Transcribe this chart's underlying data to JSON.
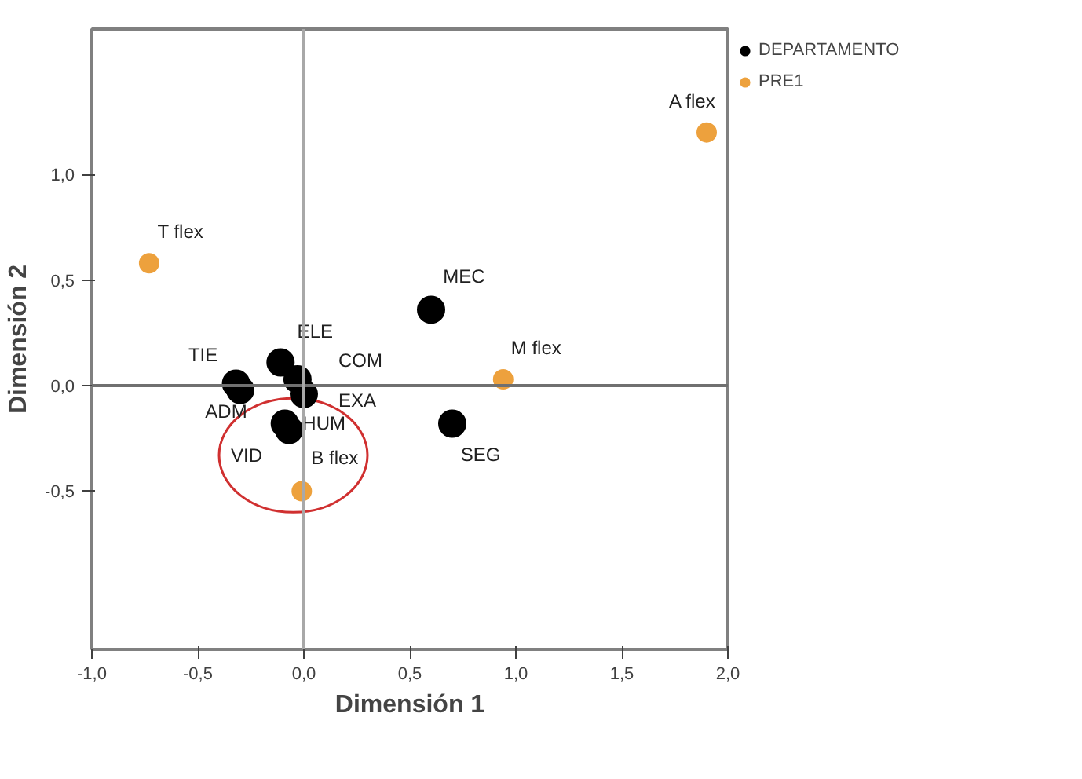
{
  "chart_data": {
    "type": "scatter",
    "xlabel": "Dimensión 1",
    "ylabel": "Dimensión 2",
    "xlim": [
      -1.0,
      2.0
    ],
    "ylim": [
      -1.25,
      1.69
    ],
    "xticks": [
      {
        "value": -1.0,
        "label": "-1,0"
      },
      {
        "value": -0.5,
        "label": "-0,5"
      },
      {
        "value": 0.0,
        "label": "0,0"
      },
      {
        "value": 0.5,
        "label": "0,5"
      },
      {
        "value": 1.0,
        "label": "1,0"
      },
      {
        "value": 1.5,
        "label": "1,5"
      },
      {
        "value": 2.0,
        "label": "2,0"
      }
    ],
    "yticks": [
      {
        "value": -0.5,
        "label": "-0,5"
      },
      {
        "value": 0.0,
        "label": "0,0"
      },
      {
        "value": 0.5,
        "label": "0,5"
      },
      {
        "value": 1.0,
        "label": "1,0"
      }
    ],
    "grid": false,
    "legend": "top right",
    "marker": "circle",
    "series": [
      {
        "name": "DEPARTAMENTO",
        "color": "#000000",
        "x": [
          -0.32,
          -0.3,
          -0.11,
          -0.03,
          0.0,
          -0.09,
          -0.07,
          0.6,
          0.7
        ],
        "values": [
          0.01,
          -0.02,
          0.11,
          0.03,
          -0.04,
          -0.18,
          -0.21,
          0.36,
          -0.18
        ]
      },
      {
        "name": "PRE1",
        "color": "#eda13d",
        "x": [
          -0.73,
          1.9,
          0.94,
          -0.01
        ],
        "values": [
          0.58,
          1.2,
          0.03,
          -0.5
        ]
      }
    ],
    "ref_lines": [
      {
        "axis": "y",
        "value": 0.0,
        "color": "#707070"
      },
      {
        "axis": "x",
        "value": 0.0,
        "color": "#a8a8a8"
      }
    ],
    "annotations": [
      {
        "text": "TIE",
        "x": -0.32,
        "y": 0.01
      },
      {
        "text": "ADM",
        "x": -0.3,
        "y": -0.02
      },
      {
        "text": "ELE",
        "x": -0.11,
        "y": 0.11
      },
      {
        "text": "COM",
        "x": -0.03,
        "y": 0.03
      },
      {
        "text": "EXA",
        "x": 0.0,
        "y": -0.04
      },
      {
        "text": "HUM",
        "x": -0.09,
        "y": -0.18
      },
      {
        "text": "VID",
        "x": -0.07,
        "y": -0.21
      },
      {
        "text": "MEC",
        "x": 0.6,
        "y": 0.36
      },
      {
        "text": "SEG",
        "x": 0.7,
        "y": -0.18
      },
      {
        "text": "T flex",
        "x": -0.73,
        "y": 0.58
      },
      {
        "text": "A flex",
        "x": 1.9,
        "y": 1.2
      },
      {
        "text": "M flex",
        "x": 0.94,
        "y": 0.03
      },
      {
        "text": "B flex",
        "x": -0.01,
        "y": -0.5
      }
    ]
  }
}
